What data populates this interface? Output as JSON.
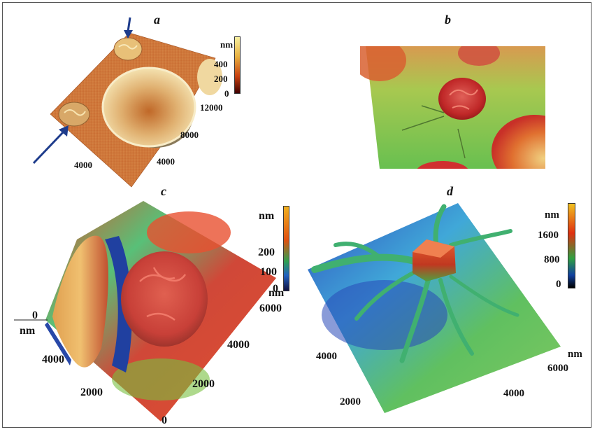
{
  "panels": [
    {
      "id": "a",
      "label": "a",
      "colorbar": {
        "unit": "nm",
        "ticks": [
          "400",
          "200",
          "0"
        ],
        "colors": [
          "#f8f0a0",
          "#e8b040",
          "#c84010",
          "#400000"
        ]
      },
      "axis_ticks": [
        "12000",
        "8000",
        "4000",
        "4000"
      ]
    },
    {
      "id": "b",
      "label": "b"
    },
    {
      "id": "c",
      "label": "c",
      "colorbar": {
        "unit": "nm",
        "ticks": [
          "200",
          "100",
          "0"
        ],
        "colors": [
          "#f0b020",
          "#e05010",
          "#2060c0",
          "#101040"
        ]
      },
      "axis_ticks": [
        "0",
        "nm",
        "4000",
        "2000",
        "0",
        "6000",
        "4000",
        "2000",
        "nm"
      ]
    },
    {
      "id": "d",
      "label": "d",
      "colorbar": {
        "unit": "nm",
        "ticks": [
          "1600",
          "800",
          "0"
        ],
        "colors": [
          "#f0c020",
          "#e03010",
          "#30a040",
          "#1040a0",
          "#000000"
        ]
      },
      "axis_ticks": [
        "nm",
        "6000",
        "4000",
        "2000",
        "4000"
      ]
    }
  ]
}
